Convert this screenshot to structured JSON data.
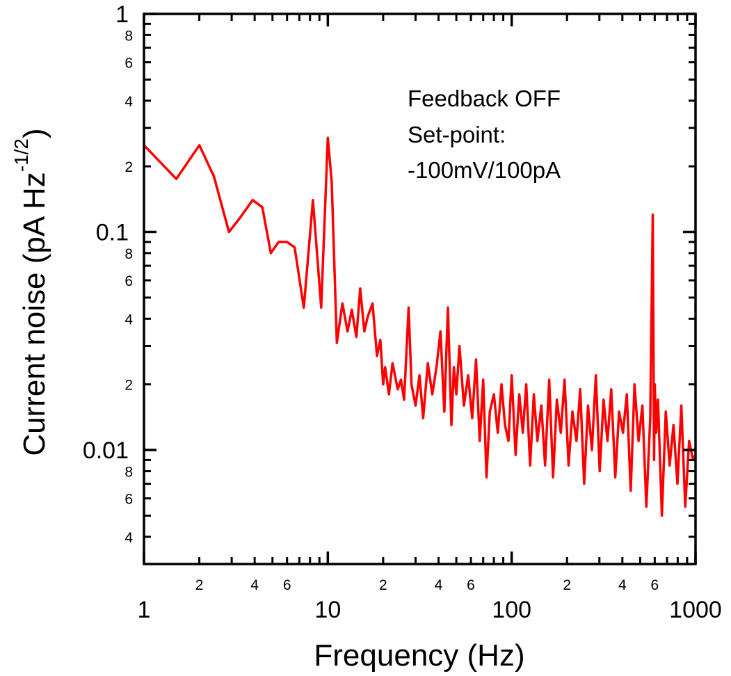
{
  "chart_data": {
    "type": "line",
    "xscale": "log",
    "yscale": "log",
    "xlim": [
      1,
      1000
    ],
    "ylim": [
      0.003,
      1
    ],
    "xlabel": "Frequency (Hz)",
    "ylabel_main": "Current noise (pA Hz",
    "ylabel_exp": "-1/2",
    "ylabel_close": ")",
    "x_major_ticks": [
      {
        "value": 1,
        "label": "1"
      },
      {
        "value": 10,
        "label": "10"
      },
      {
        "value": 100,
        "label": "100"
      },
      {
        "value": 1000,
        "label": "1000"
      }
    ],
    "x_minor_ticks": [
      2,
      3,
      4,
      5,
      6,
      7,
      8,
      9,
      20,
      30,
      40,
      50,
      60,
      70,
      80,
      90,
      200,
      300,
      400,
      500,
      600,
      700,
      800,
      900
    ],
    "x_minor_labels": [
      {
        "value": 2,
        "label": "2"
      },
      {
        "value": 4,
        "label": "4"
      },
      {
        "value": 6,
        "label": "6"
      },
      {
        "value": 20,
        "label": "2"
      },
      {
        "value": 40,
        "label": "4"
      },
      {
        "value": 60,
        "label": "6"
      },
      {
        "value": 200,
        "label": "2"
      },
      {
        "value": 400,
        "label": "4"
      },
      {
        "value": 600,
        "label": "6"
      }
    ],
    "y_major_ticks": [
      {
        "value": 1,
        "label": "1"
      },
      {
        "value": 0.1,
        "label": "0.1"
      },
      {
        "value": 0.01,
        "label": "0.01"
      }
    ],
    "y_minor_ticks": [
      0.004,
      0.005,
      0.006,
      0.007,
      0.008,
      0.009,
      0.02,
      0.03,
      0.04,
      0.05,
      0.06,
      0.07,
      0.08,
      0.09,
      0.2,
      0.3,
      0.4,
      0.5,
      0.6,
      0.7,
      0.8,
      0.9
    ],
    "y_minor_labels": [
      {
        "value": 0.004,
        "label": "4"
      },
      {
        "value": 0.006,
        "label": "6"
      },
      {
        "value": 0.008,
        "label": "8"
      },
      {
        "value": 0.02,
        "label": "2"
      },
      {
        "value": 0.04,
        "label": "4"
      },
      {
        "value": 0.06,
        "label": "6"
      },
      {
        "value": 0.08,
        "label": "8"
      },
      {
        "value": 0.2,
        "label": "2"
      },
      {
        "value": 0.4,
        "label": "4"
      },
      {
        "value": 0.6,
        "label": "6"
      },
      {
        "value": 0.8,
        "label": "8"
      }
    ],
    "annotations": [
      "Feedback OFF",
      "Set-point:",
      "-100mV/100pA"
    ],
    "series": [
      {
        "name": "Current noise",
        "color": "#ff0000",
        "x": [
          1,
          1.5,
          2,
          2.4,
          2.9,
          3.3,
          3.9,
          4.4,
          4.9,
          5.4,
          6.0,
          6.6,
          7.4,
          8.3,
          9.2,
          10.0,
          10.5,
          11.2,
          12.0,
          12.8,
          13.5,
          14.3,
          15.0,
          15.8,
          16.5,
          17.5,
          18.5,
          19.3,
          20.0,
          20.5,
          21.5,
          22.5,
          24,
          25,
          26,
          27.5,
          28.5,
          30,
          31.5,
          33,
          35,
          37,
          39,
          41,
          43,
          45,
          47,
          48.5,
          50,
          52,
          55,
          58,
          61,
          64,
          67,
          70,
          73,
          76,
          80,
          84,
          88,
          92,
          96,
          100,
          105,
          110,
          115,
          120,
          126,
          132,
          138,
          145,
          152,
          160,
          168,
          176,
          185,
          194,
          204,
          214,
          225,
          236,
          248,
          260,
          273,
          287,
          301,
          316,
          332,
          348,
          366,
          384,
          403,
          423,
          444,
          466,
          490,
          514,
          540,
          567,
          585,
          595,
          600,
          610,
          625,
          656,
          689,
          723,
          759,
          797,
          837,
          879,
          923,
          969,
          1000
        ],
        "y": [
          0.25,
          0.175,
          0.25,
          0.18,
          0.1,
          0.115,
          0.14,
          0.13,
          0.08,
          0.09,
          0.09,
          0.085,
          0.045,
          0.14,
          0.045,
          0.27,
          0.17,
          0.031,
          0.047,
          0.035,
          0.044,
          0.033,
          0.055,
          0.035,
          0.041,
          0.047,
          0.027,
          0.032,
          0.02,
          0.024,
          0.018,
          0.025,
          0.019,
          0.021,
          0.017,
          0.045,
          0.02,
          0.016,
          0.022,
          0.014,
          0.025,
          0.018,
          0.024,
          0.035,
          0.015,
          0.045,
          0.013,
          0.024,
          0.018,
          0.03,
          0.016,
          0.022,
          0.014,
          0.026,
          0.011,
          0.021,
          0.0075,
          0.015,
          0.018,
          0.012,
          0.02,
          0.013,
          0.011,
          0.022,
          0.0095,
          0.018,
          0.012,
          0.02,
          0.0085,
          0.018,
          0.011,
          0.016,
          0.0085,
          0.021,
          0.0075,
          0.017,
          0.012,
          0.021,
          0.0085,
          0.015,
          0.011,
          0.019,
          0.007,
          0.016,
          0.01,
          0.022,
          0.008,
          0.017,
          0.011,
          0.019,
          0.0075,
          0.015,
          0.012,
          0.018,
          0.0065,
          0.02,
          0.011,
          0.016,
          0.0055,
          0.014,
          0.12,
          0.009,
          0.02,
          0.012,
          0.017,
          0.005,
          0.015,
          0.0085,
          0.013,
          0.007,
          0.016,
          0.0055,
          0.011,
          0.009,
          0.0095
        ]
      }
    ]
  }
}
